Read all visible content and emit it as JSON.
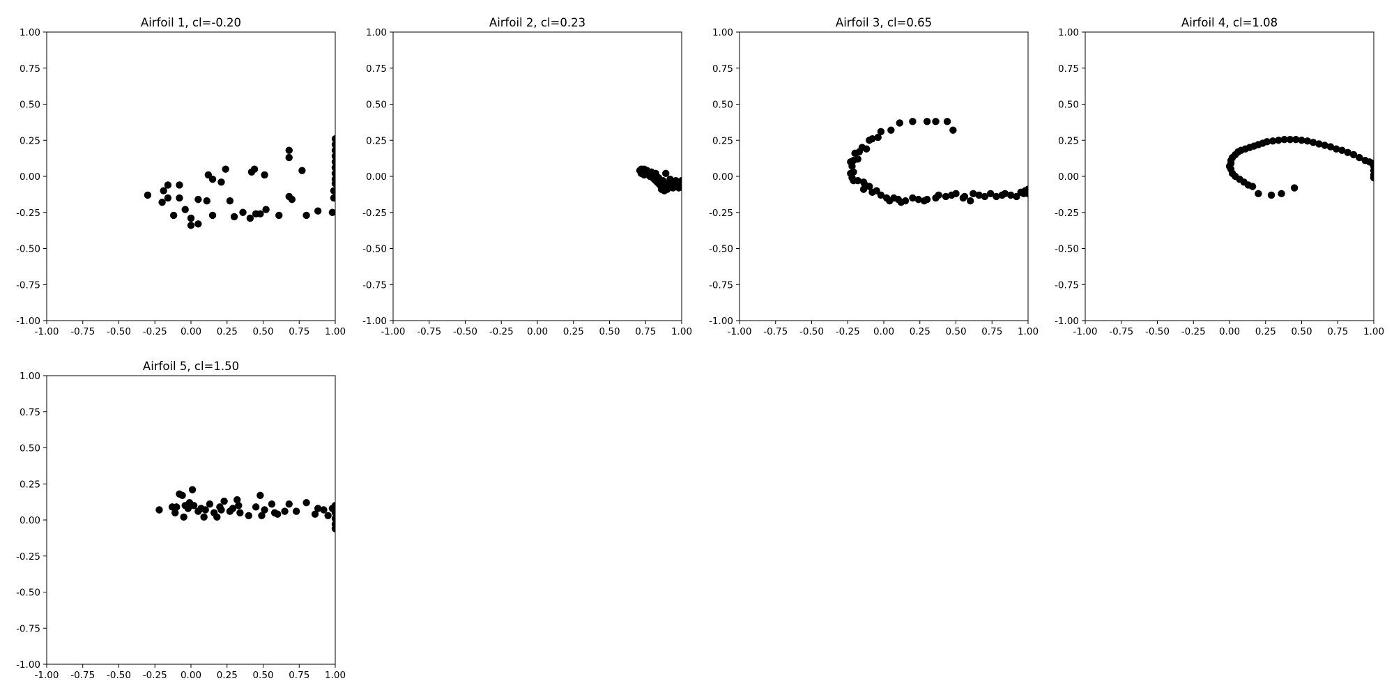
{
  "chart_data": [
    {
      "type": "scatter",
      "title": "Airfoil 1, cl=-0.20",
      "xlim": [
        -1.0,
        1.0
      ],
      "ylim": [
        -1.0,
        1.0
      ],
      "xticks": [
        "-1.00",
        "-0.75",
        "-0.50",
        "-0.25",
        "0.00",
        "0.25",
        "0.50",
        "0.75",
        "1.00"
      ],
      "yticks": [
        "-1.00",
        "-0.75",
        "-0.50",
        "-0.25",
        "0.00",
        "0.25",
        "0.50",
        "0.75",
        "1.00"
      ],
      "grid": false,
      "marker_color": "#000000",
      "points": [
        [
          1.0,
          0.26
        ],
        [
          1.0,
          0.22
        ],
        [
          1.0,
          0.18
        ],
        [
          1.0,
          0.14
        ],
        [
          1.0,
          0.1
        ],
        [
          1.0,
          0.06
        ],
        [
          1.0,
          0.02
        ],
        [
          1.0,
          -0.02
        ],
        [
          1.0,
          -0.05
        ],
        [
          0.99,
          -0.1
        ],
        [
          0.99,
          -0.15
        ],
        [
          0.98,
          -0.25
        ],
        [
          0.68,
          0.18
        ],
        [
          0.68,
          0.13
        ],
        [
          0.77,
          0.04
        ],
        [
          0.7,
          -0.16
        ],
        [
          0.68,
          -0.14
        ],
        [
          0.88,
          -0.24
        ],
        [
          0.8,
          -0.27
        ],
        [
          0.51,
          0.01
        ],
        [
          0.44,
          0.05
        ],
        [
          0.42,
          0.03
        ],
        [
          0.45,
          -0.26
        ],
        [
          0.48,
          -0.26
        ],
        [
          0.41,
          -0.29
        ],
        [
          0.52,
          -0.23
        ],
        [
          0.61,
          -0.27
        ],
        [
          0.36,
          -0.25
        ],
        [
          0.3,
          -0.28
        ],
        [
          0.27,
          -0.17
        ],
        [
          0.24,
          0.05
        ],
        [
          0.21,
          -0.04
        ],
        [
          0.15,
          -0.02
        ],
        [
          0.12,
          0.01
        ],
        [
          0.15,
          -0.27
        ],
        [
          0.11,
          -0.17
        ],
        [
          0.05,
          -0.16
        ],
        [
          0.05,
          -0.33
        ],
        [
          0.0,
          -0.29
        ],
        [
          0.0,
          -0.34
        ],
        [
          -0.04,
          -0.23
        ],
        [
          -0.08,
          -0.06
        ],
        [
          -0.08,
          -0.15
        ],
        [
          -0.12,
          -0.27
        ],
        [
          -0.16,
          -0.06
        ],
        [
          -0.16,
          -0.15
        ],
        [
          -0.19,
          -0.1
        ],
        [
          -0.2,
          -0.18
        ],
        [
          -0.3,
          -0.13
        ]
      ]
    },
    {
      "type": "scatter",
      "title": "Airfoil 2, cl=0.23",
      "xlim": [
        -1.0,
        1.0
      ],
      "ylim": [
        -1.0,
        1.0
      ],
      "xticks": [
        "-1.00",
        "-0.75",
        "-0.50",
        "-0.25",
        "0.00",
        "0.25",
        "0.50",
        "0.75",
        "1.00"
      ],
      "yticks": [
        "-1.00",
        "-0.75",
        "-0.50",
        "-0.25",
        "0.00",
        "0.25",
        "0.50",
        "0.75",
        "1.00"
      ],
      "grid": false,
      "marker_color": "#000000",
      "points": [
        [
          0.71,
          0.04
        ],
        [
          0.72,
          0.05
        ],
        [
          0.73,
          0.03
        ],
        [
          0.74,
          0.05
        ],
        [
          0.75,
          0.02
        ],
        [
          0.76,
          0.04
        ],
        [
          0.77,
          0.03
        ],
        [
          0.78,
          0.0
        ],
        [
          0.79,
          0.03
        ],
        [
          0.8,
          0.01
        ],
        [
          0.81,
          -0.02
        ],
        [
          0.82,
          0.02
        ],
        [
          0.83,
          -0.04
        ],
        [
          0.84,
          -0.01
        ],
        [
          0.85,
          -0.06
        ],
        [
          0.86,
          -0.09
        ],
        [
          0.87,
          -0.03
        ],
        [
          0.88,
          -0.1
        ],
        [
          0.89,
          0.02
        ],
        [
          0.9,
          -0.05
        ],
        [
          0.91,
          -0.08
        ],
        [
          0.92,
          -0.02
        ],
        [
          0.93,
          -0.06
        ],
        [
          0.94,
          -0.04
        ],
        [
          0.95,
          -0.07
        ],
        [
          0.96,
          -0.03
        ],
        [
          0.97,
          -0.05
        ],
        [
          0.98,
          -0.06
        ],
        [
          0.99,
          -0.04
        ],
        [
          1.0,
          -0.05
        ],
        [
          0.72,
          0.02
        ],
        [
          0.74,
          0.01
        ],
        [
          0.76,
          0.02
        ],
        [
          0.78,
          0.02
        ],
        [
          0.8,
          -0.01
        ],
        [
          0.82,
          -0.03
        ],
        [
          0.84,
          -0.05
        ],
        [
          0.86,
          -0.05
        ],
        [
          0.88,
          -0.07
        ],
        [
          0.9,
          -0.09
        ],
        [
          0.92,
          -0.06
        ],
        [
          0.94,
          -0.08
        ],
        [
          0.96,
          -0.06
        ],
        [
          0.98,
          -0.08
        ],
        [
          1.0,
          -0.03
        ],
        [
          0.86,
          -0.08
        ]
      ]
    },
    {
      "type": "scatter",
      "title": "Airfoil 3, cl=0.65",
      "xlim": [
        -1.0,
        1.0
      ],
      "ylim": [
        -1.0,
        1.0
      ],
      "xticks": [
        "-1.00",
        "-0.75",
        "-0.50",
        "-0.25",
        "0.00",
        "0.25",
        "0.50",
        "0.75",
        "1.00"
      ],
      "yticks": [
        "-1.00",
        "-0.75",
        "-0.50",
        "-0.25",
        "0.00",
        "0.25",
        "0.50",
        "0.75",
        "1.00"
      ],
      "grid": false,
      "marker_color": "#000000",
      "points": [
        [
          0.48,
          0.32
        ],
        [
          0.44,
          0.38
        ],
        [
          0.36,
          0.38
        ],
        [
          0.3,
          0.38
        ],
        [
          0.2,
          0.38
        ],
        [
          0.11,
          0.37
        ],
        [
          0.05,
          0.32
        ],
        [
          -0.02,
          0.31
        ],
        [
          -0.04,
          0.27
        ],
        [
          -0.08,
          0.26
        ],
        [
          -0.1,
          0.25
        ],
        [
          -0.12,
          0.19
        ],
        [
          -0.15,
          0.2
        ],
        [
          -0.17,
          0.17
        ],
        [
          -0.2,
          0.16
        ],
        [
          -0.18,
          0.12
        ],
        [
          -0.21,
          0.11
        ],
        [
          -0.23,
          0.1
        ],
        [
          -0.22,
          0.07
        ],
        [
          -0.21,
          0.03
        ],
        [
          -0.23,
          0.02
        ],
        [
          -0.22,
          -0.01
        ],
        [
          -0.21,
          -0.03
        ],
        [
          -0.18,
          -0.03
        ],
        [
          -0.14,
          -0.04
        ],
        [
          -0.13,
          -0.06
        ],
        [
          -0.14,
          -0.09
        ],
        [
          -0.1,
          -0.07
        ],
        [
          -0.08,
          -0.11
        ],
        [
          -0.05,
          -0.1
        ],
        [
          -0.02,
          -0.13
        ],
        [
          0.02,
          -0.15
        ],
        [
          0.04,
          -0.17
        ],
        [
          0.07,
          -0.15
        ],
        [
          0.1,
          -0.16
        ],
        [
          0.12,
          -0.18
        ],
        [
          0.15,
          -0.17
        ],
        [
          0.2,
          -0.15
        ],
        [
          0.24,
          -0.16
        ],
        [
          0.28,
          -0.17
        ],
        [
          0.3,
          -0.16
        ],
        [
          0.36,
          -0.15
        ],
        [
          0.38,
          -0.13
        ],
        [
          0.43,
          -0.14
        ],
        [
          0.47,
          -0.13
        ],
        [
          0.5,
          -0.12
        ],
        [
          0.55,
          -0.15
        ],
        [
          0.56,
          -0.14
        ],
        [
          0.6,
          -0.17
        ],
        [
          0.62,
          -0.12
        ],
        [
          0.66,
          -0.13
        ],
        [
          0.7,
          -0.14
        ],
        [
          0.74,
          -0.12
        ],
        [
          0.78,
          -0.14
        ],
        [
          0.82,
          -0.13
        ],
        [
          0.84,
          -0.12
        ],
        [
          0.88,
          -0.13
        ],
        [
          0.92,
          -0.14
        ],
        [
          0.95,
          -0.11
        ],
        [
          0.97,
          -0.12
        ],
        [
          0.98,
          -0.1
        ],
        [
          1.0,
          -0.09
        ],
        [
          1.0,
          -0.12
        ]
      ]
    },
    {
      "type": "scatter",
      "title": "Airfoil 4, cl=1.08",
      "xlim": [
        -1.0,
        1.0
      ],
      "ylim": [
        -1.0,
        1.0
      ],
      "xticks": [
        "-1.00",
        "-0.75",
        "-0.50",
        "-0.25",
        "0.00",
        "0.25",
        "0.50",
        "0.75",
        "1.00"
      ],
      "yticks": [
        "-1.00",
        "-0.75",
        "-0.50",
        "-0.25",
        "0.00",
        "0.25",
        "0.50",
        "0.75",
        "1.00"
      ],
      "grid": false,
      "marker_color": "#000000",
      "points": [
        [
          0.45,
          -0.08
        ],
        [
          0.36,
          -0.12
        ],
        [
          0.29,
          -0.13
        ],
        [
          0.2,
          -0.12
        ],
        [
          0.16,
          -0.07
        ],
        [
          0.13,
          -0.06
        ],
        [
          0.1,
          -0.04
        ],
        [
          0.07,
          -0.02
        ],
        [
          0.04,
          0.0
        ],
        [
          0.02,
          0.02
        ],
        [
          0.01,
          0.05
        ],
        [
          0.0,
          0.07
        ],
        [
          0.01,
          0.09
        ],
        [
          0.01,
          0.11
        ],
        [
          0.02,
          0.13
        ],
        [
          0.04,
          0.15
        ],
        [
          0.06,
          0.17
        ],
        [
          0.08,
          0.18
        ],
        [
          0.11,
          0.19
        ],
        [
          0.14,
          0.2
        ],
        [
          0.17,
          0.21
        ],
        [
          0.2,
          0.22
        ],
        [
          0.23,
          0.23
        ],
        [
          0.26,
          0.24
        ],
        [
          0.3,
          0.245
        ],
        [
          0.34,
          0.25
        ],
        [
          0.38,
          0.255
        ],
        [
          0.42,
          0.255
        ],
        [
          0.46,
          0.255
        ],
        [
          0.5,
          0.25
        ],
        [
          0.54,
          0.245
        ],
        [
          0.58,
          0.235
        ],
        [
          0.62,
          0.225
        ],
        [
          0.66,
          0.215
        ],
        [
          0.7,
          0.205
        ],
        [
          0.74,
          0.19
        ],
        [
          0.78,
          0.18
        ],
        [
          0.82,
          0.165
        ],
        [
          0.86,
          0.15
        ],
        [
          0.9,
          0.13
        ],
        [
          0.94,
          0.11
        ],
        [
          0.97,
          0.1
        ],
        [
          0.99,
          0.09
        ],
        [
          1.0,
          0.07
        ],
        [
          1.0,
          0.04
        ],
        [
          1.0,
          0.01
        ],
        [
          1.0,
          -0.01
        ]
      ]
    },
    {
      "type": "scatter",
      "title": "Airfoil 5, cl=1.50",
      "xlim": [
        -1.0,
        1.0
      ],
      "ylim": [
        -1.0,
        1.0
      ],
      "xticks": [
        "-1.00",
        "-0.75",
        "-0.50",
        "-0.25",
        "0.00",
        "0.25",
        "0.50",
        "0.75",
        "1.00"
      ],
      "yticks": [
        "-1.00",
        "-0.75",
        "-0.50",
        "-0.25",
        "0.00",
        "0.25",
        "0.50",
        "0.75",
        "1.00"
      ],
      "grid": false,
      "marker_color": "#000000",
      "points": [
        [
          -0.22,
          0.07
        ],
        [
          -0.13,
          0.09
        ],
        [
          -0.11,
          0.05
        ],
        [
          -0.1,
          0.09
        ],
        [
          -0.08,
          0.18
        ],
        [
          -0.06,
          0.17
        ],
        [
          -0.04,
          0.1
        ],
        [
          -0.05,
          0.02
        ],
        [
          -0.02,
          0.08
        ],
        [
          -0.01,
          0.12
        ],
        [
          0.01,
          0.21
        ],
        [
          0.02,
          0.1
        ],
        [
          0.05,
          0.06
        ],
        [
          0.07,
          0.08
        ],
        [
          0.09,
          0.02
        ],
        [
          0.1,
          0.07
        ],
        [
          0.13,
          0.11
        ],
        [
          0.16,
          0.05
        ],
        [
          0.18,
          0.02
        ],
        [
          0.2,
          0.09
        ],
        [
          0.21,
          0.07
        ],
        [
          0.23,
          0.13
        ],
        [
          0.27,
          0.06
        ],
        [
          0.29,
          0.08
        ],
        [
          0.32,
          0.14
        ],
        [
          0.33,
          0.1
        ],
        [
          0.34,
          0.05
        ],
        [
          0.4,
          0.03
        ],
        [
          0.45,
          0.09
        ],
        [
          0.48,
          0.17
        ],
        [
          0.49,
          0.03
        ],
        [
          0.51,
          0.07
        ],
        [
          0.56,
          0.11
        ],
        [
          0.58,
          0.05
        ],
        [
          0.6,
          0.04
        ],
        [
          0.65,
          0.06
        ],
        [
          0.68,
          0.11
        ],
        [
          0.73,
          0.06
        ],
        [
          0.8,
          0.12
        ],
        [
          0.86,
          0.04
        ],
        [
          0.88,
          0.08
        ],
        [
          0.92,
          0.07
        ],
        [
          0.95,
          0.03
        ],
        [
          0.98,
          0.08
        ],
        [
          1.0,
          0.1
        ],
        [
          1.0,
          0.05
        ],
        [
          1.0,
          0.01
        ],
        [
          1.0,
          -0.03
        ],
        [
          1.0,
          -0.06
        ]
      ]
    }
  ]
}
